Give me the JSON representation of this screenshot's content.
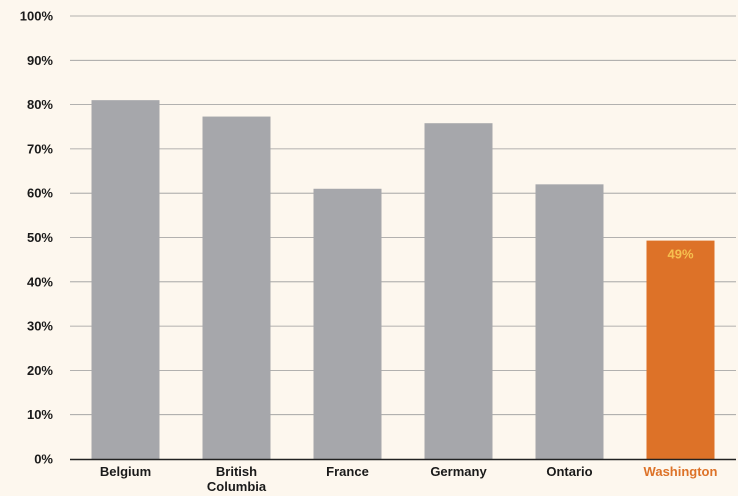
{
  "chart_data": {
    "type": "bar",
    "categories": [
      "Belgium",
      "British\nColumbia",
      "France",
      "Germany",
      "Ontario",
      "Washington"
    ],
    "values": [
      81,
      77.3,
      61,
      75.8,
      62,
      49.3
    ],
    "ylim": [
      0,
      100
    ],
    "yticks": [
      0,
      10,
      20,
      30,
      40,
      50,
      60,
      70,
      80,
      90,
      100
    ],
    "ytick_labels": [
      "0%",
      "10%",
      "20%",
      "30%",
      "40%",
      "50%",
      "60%",
      "70%",
      "80%",
      "90%",
      "100%"
    ],
    "data_labels": [
      null,
      null,
      null,
      null,
      null,
      "49%"
    ],
    "grid": true,
    "title": "",
    "xlabel": "",
    "ylabel": ""
  },
  "colors": {
    "bar_default": "#a6a7ab",
    "bar_highlight": "#dd7228",
    "highlight_label": "#dd7228",
    "data_label": "#f6c04f",
    "gridline": "#9a9a9a",
    "axis": "#222222",
    "text": "#1a1a1a"
  },
  "highlight_index": 5
}
